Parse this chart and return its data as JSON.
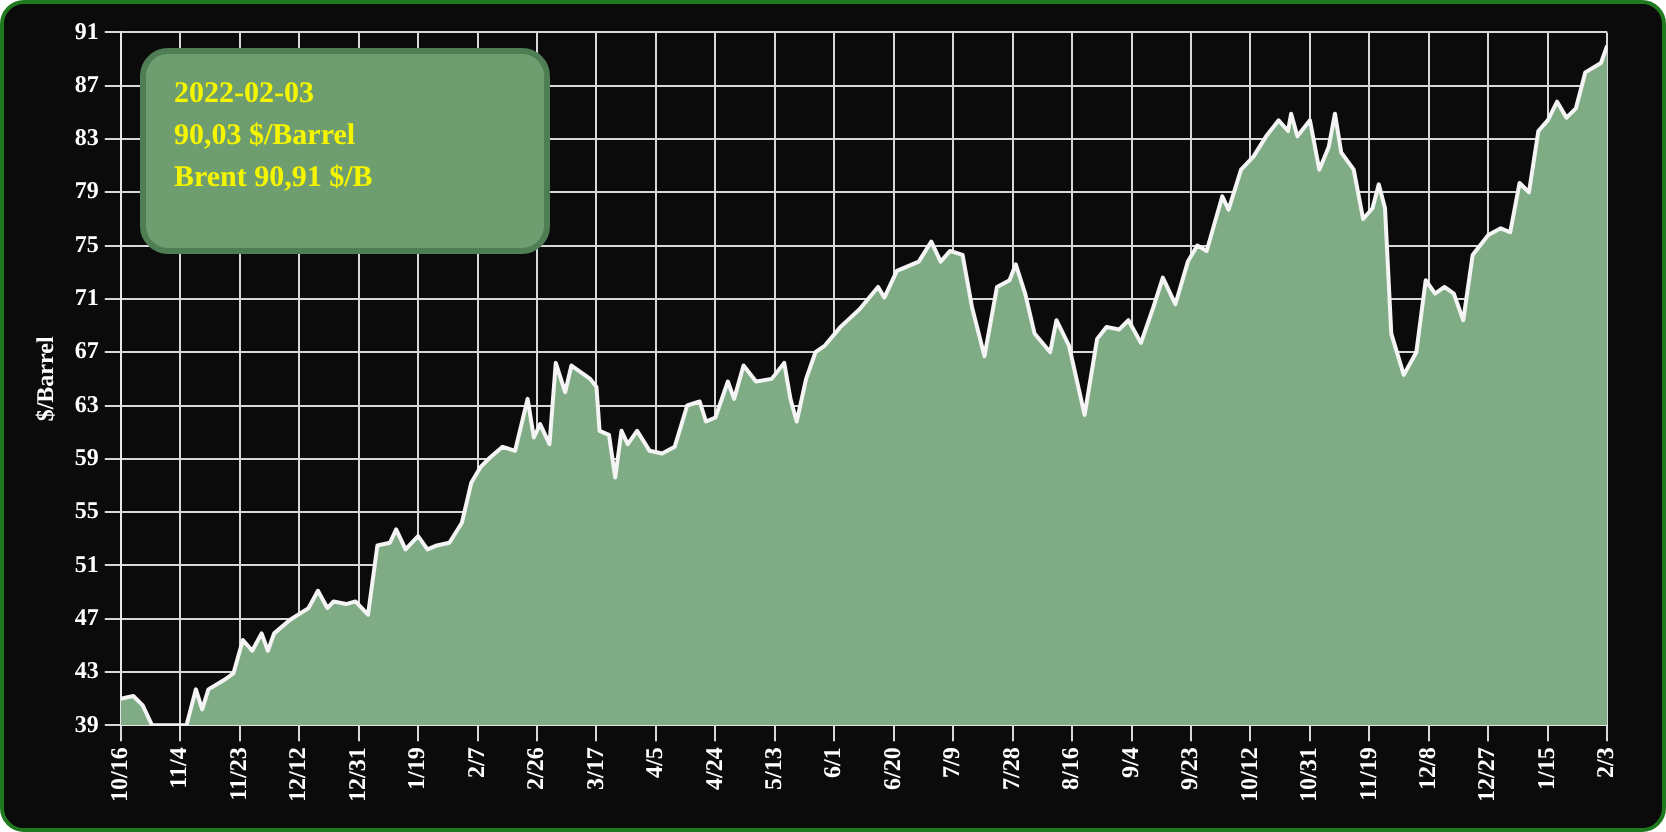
{
  "chart_data": {
    "type": "area",
    "ylabel": "$/Barrel",
    "color": "#80ac85",
    "annotations": [
      "2022-02-03",
      "90,03 $/Barrel",
      "Brent 90,91 $/B"
    ],
    "x": [
      "2020-10-16",
      "2020-10-20",
      "2020-10-23",
      "2020-10-26",
      "2020-11-06",
      "2020-11-09",
      "2020-11-11",
      "2020-11-13",
      "2020-11-18",
      "2020-11-21",
      "2020-11-24",
      "2020-11-27",
      "2020-11-30",
      "2020-12-02",
      "2020-12-04",
      "2020-12-09",
      "2020-12-15",
      "2020-12-18",
      "2020-12-21",
      "2020-12-23",
      "2020-12-27",
      "2020-12-30",
      "2021-01-03",
      "2021-01-06",
      "2021-01-10",
      "2021-01-12",
      "2021-01-15",
      "2021-01-19",
      "2021-01-22",
      "2021-01-25",
      "2021-01-29",
      "2021-02-02",
      "2021-02-05",
      "2021-02-08",
      "2021-02-11",
      "2021-02-15",
      "2021-02-19",
      "2021-02-23",
      "2021-02-25",
      "2021-02-27",
      "2021-03-02",
      "2021-03-04",
      "2021-03-07",
      "2021-03-09",
      "2021-03-15",
      "2021-03-17",
      "2021-03-18",
      "2021-03-21",
      "2021-03-23",
      "2021-03-25",
      "2021-03-27",
      "2021-03-30",
      "2021-04-03",
      "2021-04-07",
      "2021-04-11",
      "2021-04-15",
      "2021-04-19",
      "2021-04-21",
      "2021-04-24",
      "2021-04-28",
      "2021-04-30",
      "2021-05-03",
      "2021-05-07",
      "2021-05-12",
      "2021-05-16",
      "2021-05-18",
      "2021-05-20",
      "2021-05-23",
      "2021-05-26",
      "2021-05-29",
      "2021-06-03",
      "2021-06-09",
      "2021-06-15",
      "2021-06-17",
      "2021-06-21",
      "2021-06-28",
      "2021-07-02",
      "2021-07-05",
      "2021-07-08",
      "2021-07-12",
      "2021-07-15",
      "2021-07-19",
      "2021-07-23",
      "2021-07-27",
      "2021-07-29",
      "2021-08-01",
      "2021-08-04",
      "2021-08-09",
      "2021-08-11",
      "2021-08-15",
      "2021-08-20",
      "2021-08-24",
      "2021-08-27",
      "2021-08-31",
      "2021-09-03",
      "2021-09-07",
      "2021-09-11",
      "2021-09-14",
      "2021-09-18",
      "2021-09-22",
      "2021-09-25",
      "2021-09-28",
      "2021-10-03",
      "2021-10-05",
      "2021-10-09",
      "2021-10-13",
      "2021-10-17",
      "2021-10-21",
      "2021-10-24",
      "2021-10-25",
      "2021-10-27",
      "2021-10-31",
      "2021-11-03",
      "2021-11-06",
      "2021-11-08",
      "2021-11-10",
      "2021-11-14",
      "2021-11-17",
      "2021-11-20",
      "2021-11-22",
      "2021-11-24",
      "2021-11-26",
      "2021-11-30",
      "2021-12-04",
      "2021-12-07",
      "2021-12-10",
      "2021-12-13",
      "2021-12-16",
      "2021-12-19",
      "2021-12-22",
      "2021-12-27",
      "2021-12-31",
      "2022-01-03",
      "2022-01-06",
      "2022-01-09",
      "2022-01-12",
      "2022-01-15",
      "2022-01-18",
      "2022-01-21",
      "2022-01-24",
      "2022-01-27",
      "2022-02-01",
      "2022-02-03"
    ],
    "values": [
      41.0,
      41.2,
      40.5,
      39,
      39,
      41.7,
      40.2,
      41.7,
      42.4,
      42.9,
      45.4,
      44.6,
      45.9,
      44.6,
      45.9,
      46.9,
      47.8,
      49.1,
      47.8,
      48.3,
      48.1,
      48.3,
      47.3,
      52.5,
      52.7,
      53.7,
      52.2,
      53.2,
      52.2,
      52.5,
      52.7,
      54.2,
      57.2,
      58.4,
      59.1,
      59.9,
      59.6,
      63.5,
      60.6,
      61.6,
      60.1,
      66.2,
      64.0,
      66.0,
      65.0,
      64.4,
      61.1,
      60.8,
      57.6,
      61.1,
      60.1,
      61.1,
      59.6,
      59.4,
      59.9,
      63.0,
      63.3,
      61.8,
      62.1,
      64.8,
      63.5,
      66.0,
      64.8,
      65.0,
      66.2,
      63.5,
      61.8,
      65.0,
      67.0,
      67.5,
      68.9,
      70.2,
      71.9,
      71.1,
      73.1,
      73.8,
      75.3,
      73.8,
      74.6,
      74.3,
      70.4,
      66.7,
      71.9,
      72.4,
      73.6,
      71.4,
      68.4,
      67.0,
      69.4,
      67.5,
      62.3,
      68.0,
      68.9,
      68.7,
      69.4,
      67.7,
      70.4,
      72.6,
      70.6,
      73.8,
      75.0,
      74.6,
      78.7,
      77.7,
      80.7,
      81.7,
      83.2,
      84.4,
      83.6,
      84.9,
      83.2,
      84.4,
      80.7,
      82.4,
      84.9,
      82.0,
      80.7,
      77.0,
      77.8,
      79.6,
      77.8,
      68.4,
      65.3,
      67.0,
      72.4,
      71.4,
      71.9,
      71.4,
      69.4,
      74.3,
      75.8,
      76.3,
      76.0,
      79.7,
      79.0,
      83.6,
      84.4,
      85.8,
      84.6,
      85.3,
      88.0,
      88.7,
      90.0
    ],
    "xlim": [
      "2020-10-16",
      "2022-02-03"
    ],
    "xticks": [
      {
        "value": "2020-10-16",
        "label": "10/16"
      },
      {
        "value": "2020-11-04",
        "label": "11/4"
      },
      {
        "value": "2020-11-23",
        "label": "11/23"
      },
      {
        "value": "2020-12-12",
        "label": "12/12"
      },
      {
        "value": "2020-12-31",
        "label": "12/31"
      },
      {
        "value": "2021-01-19",
        "label": "1/19"
      },
      {
        "value": "2021-02-07",
        "label": "2/7"
      },
      {
        "value": "2021-02-26",
        "label": "2/26"
      },
      {
        "value": "2021-03-17",
        "label": "3/17"
      },
      {
        "value": "2021-04-05",
        "label": "4/5"
      },
      {
        "value": "2021-04-24",
        "label": "4/24"
      },
      {
        "value": "2021-05-13",
        "label": "5/13"
      },
      {
        "value": "2021-06-01",
        "label": "6/1"
      },
      {
        "value": "2021-06-20",
        "label": "6/20"
      },
      {
        "value": "2021-07-09",
        "label": "7/9"
      },
      {
        "value": "2021-07-28",
        "label": "7/28"
      },
      {
        "value": "2021-08-16",
        "label": "8/16"
      },
      {
        "value": "2021-09-04",
        "label": "9/4"
      },
      {
        "value": "2021-09-23",
        "label": "9/23"
      },
      {
        "value": "2021-10-12",
        "label": "10/12"
      },
      {
        "value": "2021-10-31",
        "label": "10/31"
      },
      {
        "value": "2021-11-19",
        "label": "11/19"
      },
      {
        "value": "2021-12-08",
        "label": "12/8"
      },
      {
        "value": "2021-12-27",
        "label": "12/27"
      },
      {
        "value": "2022-01-15",
        "label": "1/15"
      },
      {
        "value": "2022-02-03",
        "label": "2/3"
      }
    ],
    "ylim": [
      39,
      91
    ],
    "yticks": [
      39,
      43,
      47,
      51,
      55,
      59,
      63,
      67,
      71,
      75,
      79,
      83,
      87,
      91
    ],
    "grid": true,
    "legend": false,
    "marker": "none",
    "line_style": "solid"
  }
}
